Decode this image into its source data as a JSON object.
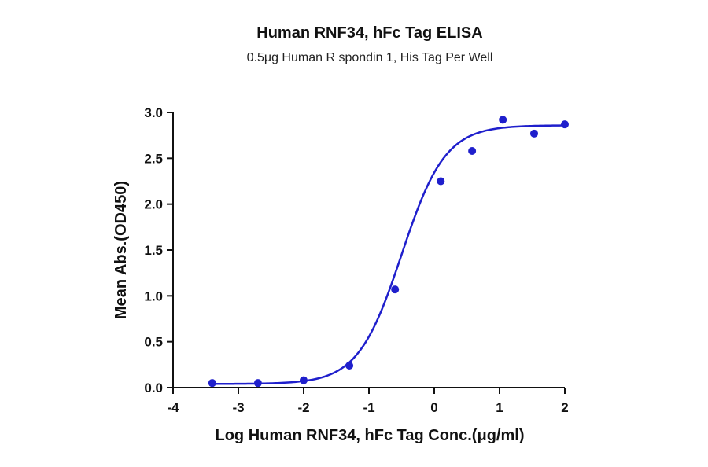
{
  "chart_data": {
    "type": "scatter",
    "title": "Human RNF34, hFc Tag ELISA",
    "subtitle": "0.5μg Human R spondin 1, His Tag Per Well",
    "xlabel": "Log Human RNF34, hFc Tag Conc.(μg/ml)",
    "ylabel": "Mean Abs.(OD450)",
    "xlim": [
      -4,
      2
    ],
    "ylim": [
      0,
      3
    ],
    "x_ticks": [
      "-4",
      "-3",
      "-2",
      "-1",
      "0",
      "1",
      "2"
    ],
    "y_ticks": [
      "0.0",
      "0.5",
      "1.0",
      "1.5",
      "2.0",
      "2.5",
      "3.0"
    ],
    "grid": false,
    "series": [
      {
        "points": [
          {
            "x": -3.4,
            "y": 0.05
          },
          {
            "x": -2.7,
            "y": 0.05
          },
          {
            "x": -2.0,
            "y": 0.08
          },
          {
            "x": -1.3,
            "y": 0.24
          },
          {
            "x": -0.6,
            "y": 1.07
          },
          {
            "x": 0.1,
            "y": 2.25
          },
          {
            "x": 0.58,
            "y": 2.58
          },
          {
            "x": 1.05,
            "y": 2.92
          },
          {
            "x": 1.53,
            "y": 2.77
          },
          {
            "x": 2.0,
            "y": 2.87
          }
        ],
        "fit": {
          "model": "4PL",
          "bottom": 0.04,
          "top": 2.86,
          "log_ec50": -0.5,
          "hill_slope": 1.3
        }
      }
    ],
    "colors": {
      "series": "#1f1fcc",
      "axis": "#111111"
    }
  }
}
